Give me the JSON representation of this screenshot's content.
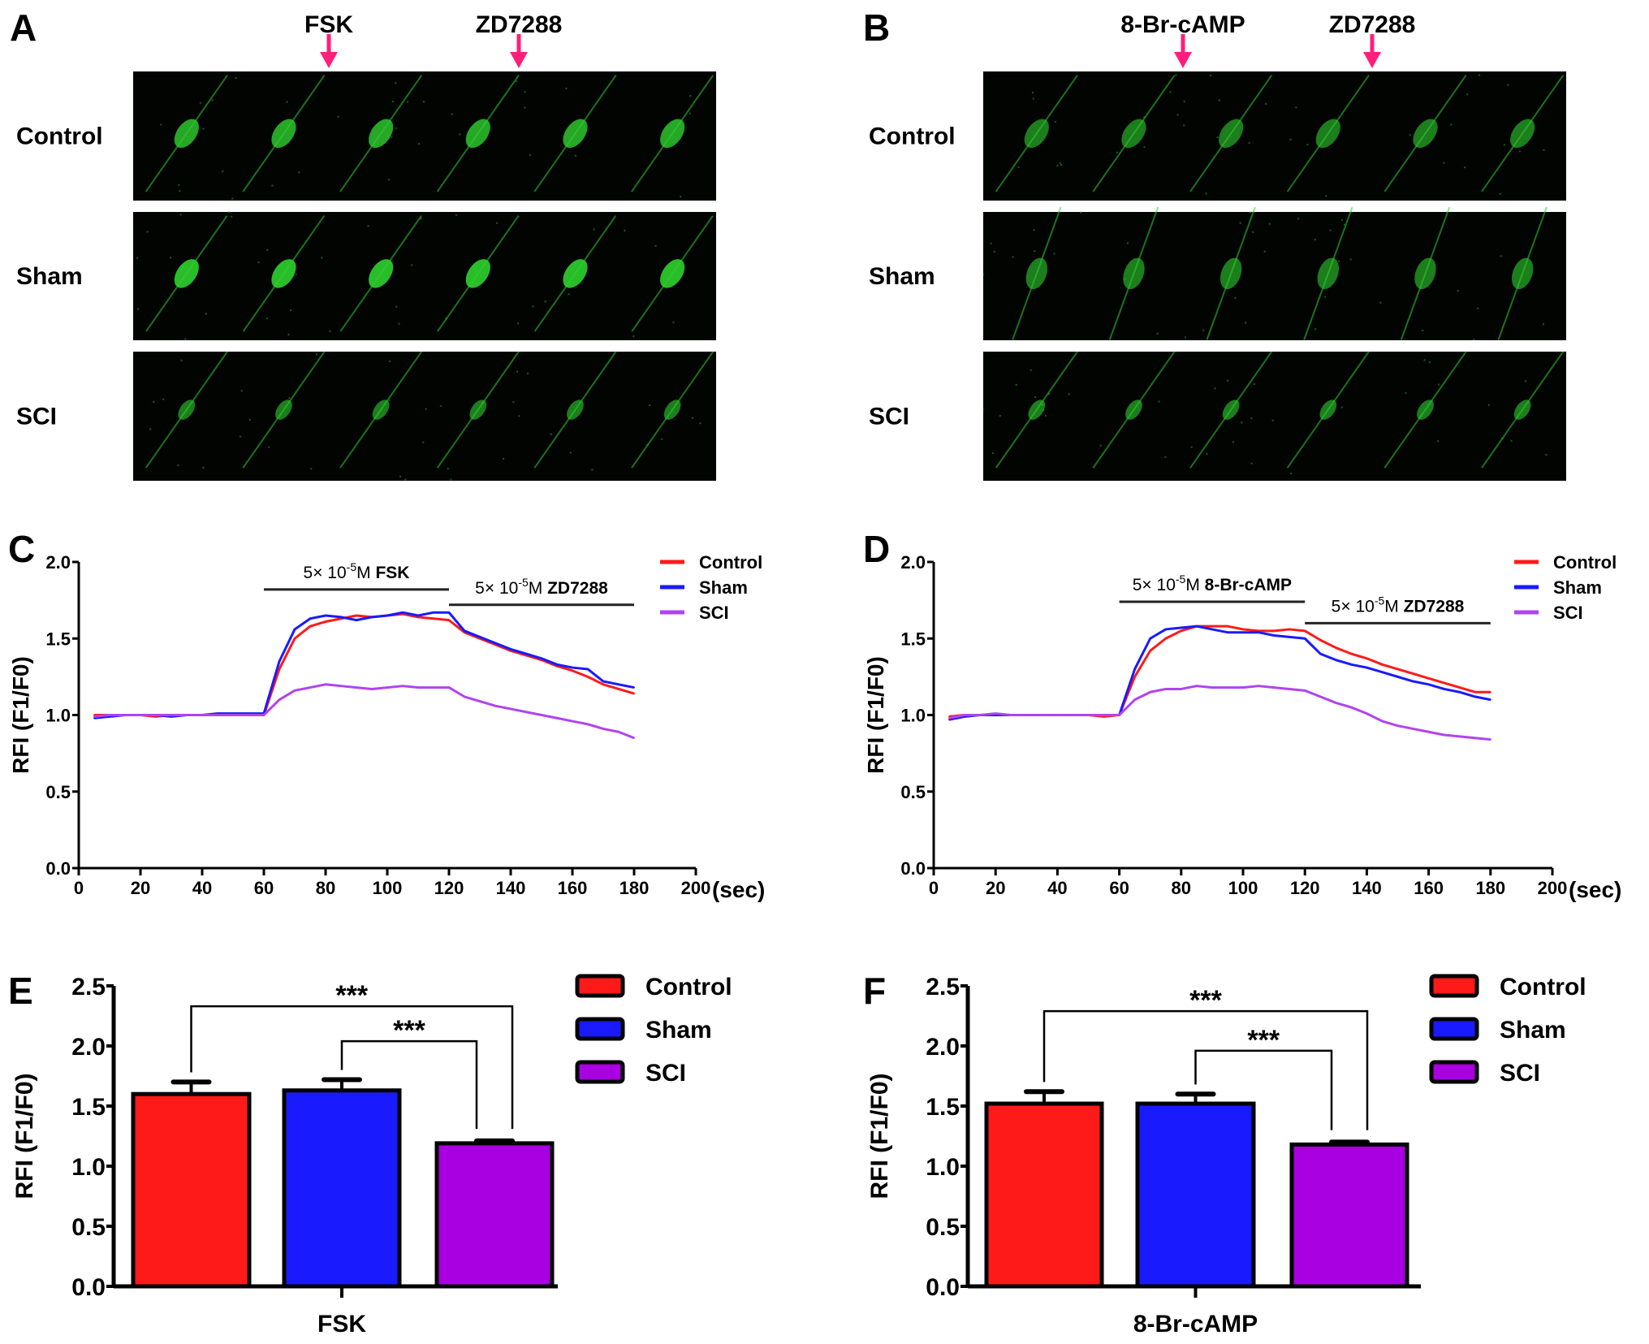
{
  "panels": {
    "A": {
      "letter": "A",
      "arrows": [
        "FSK",
        "ZD7288"
      ],
      "rows": [
        "Control",
        "Sham",
        "SCI"
      ]
    },
    "B": {
      "letter": "B",
      "arrows": [
        "8-Br-cAMP",
        "ZD7288"
      ],
      "rows": [
        "Control",
        "Sham",
        "SCI"
      ]
    },
    "C": {
      "letter": "C"
    },
    "D": {
      "letter": "D"
    },
    "E": {
      "letter": "E"
    },
    "F": {
      "letter": "F"
    }
  },
  "colors": {
    "Control": "#ff1a1a",
    "Sham": "#1a1aff",
    "SCI": "#b044f0",
    "bar_SCI": "#a800e0",
    "arrow": "#ff1f7a",
    "cell": "#2fd12f"
  },
  "chart_data": [
    {
      "id": "C",
      "type": "line",
      "xlabel": "(sec)",
      "ylabel": "RFI (F1/F0)",
      "xlim": [
        0,
        200
      ],
      "ylim": [
        0,
        2.0
      ],
      "xticks": [
        "0",
        "20",
        "40",
        "60",
        "80",
        "100",
        "120",
        "140",
        "160",
        "180",
        "200"
      ],
      "yticks": [
        "0.0",
        "0.5",
        "1.0",
        "1.5",
        "2.0"
      ],
      "legend": [
        "Control",
        "Sham",
        "SCI"
      ],
      "legend_position": "top-right",
      "annotations": [
        {
          "pre": "5× 10",
          "sup": "-5",
          "mid": "M ",
          "drug": "FSK",
          "x": [
            60,
            120
          ],
          "y": 1.82
        },
        {
          "pre": "5× 10",
          "sup": "-5",
          "mid": "M ",
          "drug": "ZD7288",
          "x": [
            120,
            180
          ],
          "y": 1.72
        }
      ],
      "x": [
        5,
        10,
        15,
        20,
        25,
        30,
        35,
        40,
        45,
        50,
        55,
        60,
        65,
        70,
        75,
        80,
        85,
        90,
        95,
        100,
        105,
        110,
        115,
        120,
        125,
        130,
        135,
        140,
        145,
        150,
        155,
        160,
        165,
        170,
        175,
        180
      ],
      "series": [
        {
          "name": "Control",
          "values": [
            1.0,
            1.0,
            1.0,
            1.0,
            0.99,
            1.0,
            1.0,
            1.0,
            1.0,
            1.0,
            1.0,
            1.0,
            1.3,
            1.5,
            1.58,
            1.61,
            1.63,
            1.65,
            1.64,
            1.65,
            1.66,
            1.64,
            1.63,
            1.62,
            1.54,
            1.5,
            1.46,
            1.42,
            1.39,
            1.36,
            1.32,
            1.29,
            1.25,
            1.2,
            1.17,
            1.14
          ]
        },
        {
          "name": "Sham",
          "values": [
            0.98,
            0.99,
            1.0,
            1.0,
            1.0,
            0.99,
            1.0,
            1.0,
            1.01,
            1.01,
            1.01,
            1.01,
            1.35,
            1.56,
            1.63,
            1.65,
            1.64,
            1.62,
            1.64,
            1.65,
            1.67,
            1.65,
            1.67,
            1.67,
            1.55,
            1.51,
            1.47,
            1.43,
            1.4,
            1.37,
            1.33,
            1.31,
            1.3,
            1.22,
            1.2,
            1.18
          ]
        },
        {
          "name": "SCI",
          "values": [
            0.99,
            1.0,
            1.0,
            1.0,
            1.0,
            1.0,
            1.0,
            1.0,
            1.0,
            1.0,
            1.0,
            1.0,
            1.1,
            1.16,
            1.18,
            1.2,
            1.19,
            1.18,
            1.17,
            1.18,
            1.19,
            1.18,
            1.18,
            1.18,
            1.12,
            1.09,
            1.06,
            1.04,
            1.02,
            1.0,
            0.98,
            0.96,
            0.94,
            0.91,
            0.89,
            0.85
          ]
        }
      ]
    },
    {
      "id": "D",
      "type": "line",
      "xlabel": "(sec)",
      "ylabel": "RFI (F1/F0)",
      "xlim": [
        0,
        200
      ],
      "ylim": [
        0,
        2.0
      ],
      "xticks": [
        "0",
        "20",
        "40",
        "60",
        "80",
        "100",
        "120",
        "140",
        "160",
        "180",
        "200"
      ],
      "yticks": [
        "0.0",
        "0.5",
        "1.0",
        "1.5",
        "2.0"
      ],
      "legend": [
        "Control",
        "Sham",
        "SCI"
      ],
      "legend_position": "top-right",
      "annotations": [
        {
          "pre": "5× 10",
          "sup": "-5",
          "mid": "M ",
          "drug": "8-Br-cAMP",
          "x": [
            60,
            120
          ],
          "y": 1.74
        },
        {
          "pre": "5× 10",
          "sup": "-5",
          "mid": "M ",
          "drug": "ZD7288",
          "x": [
            120,
            180
          ],
          "y": 1.6
        }
      ],
      "x": [
        5,
        10,
        15,
        20,
        25,
        30,
        35,
        40,
        45,
        50,
        55,
        60,
        65,
        70,
        75,
        80,
        85,
        90,
        95,
        100,
        105,
        110,
        115,
        120,
        125,
        130,
        135,
        140,
        145,
        150,
        155,
        160,
        165,
        170,
        175,
        180
      ],
      "series": [
        {
          "name": "Control",
          "values": [
            0.99,
            1.0,
            1.0,
            1.0,
            1.0,
            1.0,
            1.0,
            1.0,
            1.0,
            1.0,
            0.99,
            1.0,
            1.25,
            1.42,
            1.5,
            1.55,
            1.58,
            1.58,
            1.58,
            1.56,
            1.55,
            1.55,
            1.56,
            1.55,
            1.49,
            1.44,
            1.4,
            1.37,
            1.33,
            1.3,
            1.27,
            1.24,
            1.21,
            1.18,
            1.15,
            1.15
          ]
        },
        {
          "name": "Sham",
          "values": [
            0.97,
            0.99,
            1.0,
            1.0,
            1.0,
            1.0,
            1.0,
            1.0,
            1.0,
            1.0,
            1.0,
            1.0,
            1.3,
            1.5,
            1.56,
            1.57,
            1.58,
            1.56,
            1.54,
            1.54,
            1.54,
            1.52,
            1.51,
            1.5,
            1.4,
            1.36,
            1.33,
            1.31,
            1.28,
            1.25,
            1.22,
            1.2,
            1.17,
            1.15,
            1.12,
            1.1
          ]
        },
        {
          "name": "SCI",
          "values": [
            0.98,
            1.0,
            1.0,
            1.01,
            1.0,
            1.0,
            1.0,
            1.0,
            1.0,
            1.0,
            1.0,
            1.0,
            1.1,
            1.15,
            1.17,
            1.17,
            1.19,
            1.18,
            1.18,
            1.18,
            1.19,
            1.18,
            1.17,
            1.16,
            1.12,
            1.08,
            1.05,
            1.01,
            0.96,
            0.93,
            0.91,
            0.89,
            0.87,
            0.86,
            0.85,
            0.84
          ]
        }
      ]
    },
    {
      "id": "E",
      "type": "bar",
      "xlabel": "FSK",
      "ylabel": "RFI (F1/F0)",
      "ylim": [
        0,
        2.5
      ],
      "yticks": [
        "0.0",
        "0.5",
        "1.0",
        "1.5",
        "2.0",
        "2.5"
      ],
      "categories": [
        "Control",
        "Sham",
        "SCI"
      ],
      "values": [
        1.6,
        1.63,
        1.19
      ],
      "errors": [
        0.1,
        0.09,
        0.02
      ],
      "legend": [
        "Control",
        "Sham",
        "SCI"
      ],
      "legend_position": "top-right",
      "significance": [
        {
          "pair": [
            0,
            2
          ],
          "label": "***",
          "y": 2.33
        },
        {
          "pair": [
            1,
            2
          ],
          "label": "***",
          "y": 2.04
        }
      ]
    },
    {
      "id": "F",
      "type": "bar",
      "xlabel": "8-Br-cAMP",
      "ylabel": "RFI (F1/F0)",
      "ylim": [
        0,
        2.5
      ],
      "yticks": [
        "0.0",
        "0.5",
        "1.0",
        "1.5",
        "2.0",
        "2.5"
      ],
      "categories": [
        "Control",
        "Sham",
        "SCI"
      ],
      "values": [
        1.52,
        1.52,
        1.18
      ],
      "errors": [
        0.1,
        0.08,
        0.02
      ],
      "legend": [
        "Control",
        "Sham",
        "SCI"
      ],
      "legend_position": "top-right",
      "significance": [
        {
          "pair": [
            0,
            2
          ],
          "label": "***",
          "y": 2.29
        },
        {
          "pair": [
            1,
            2
          ],
          "label": "***",
          "y": 1.96
        }
      ]
    }
  ]
}
